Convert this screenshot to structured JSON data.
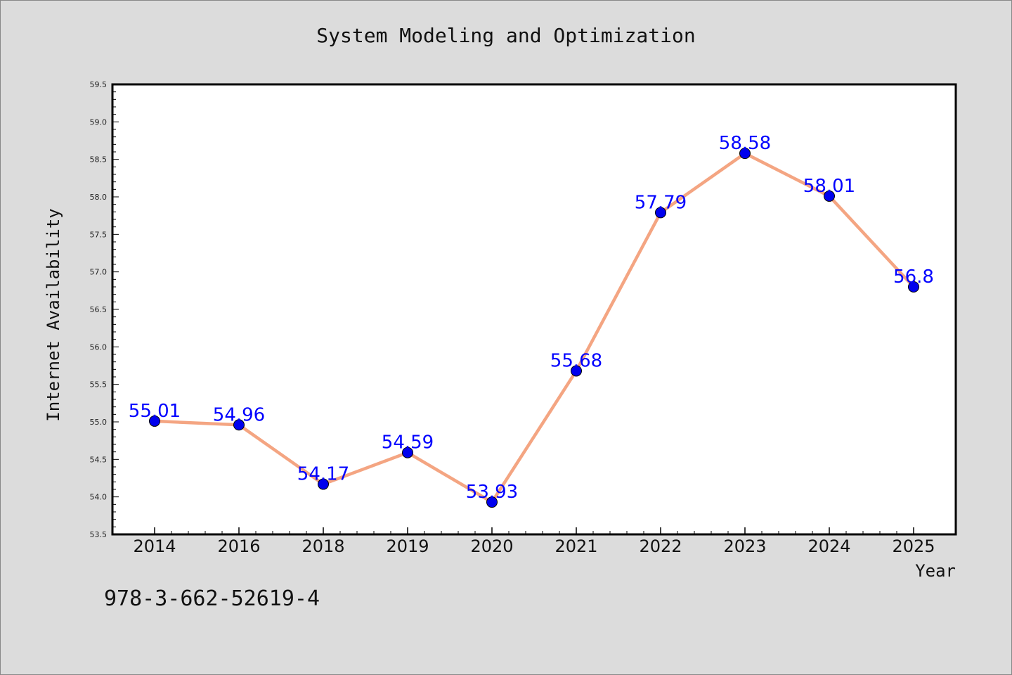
{
  "chart_data": {
    "type": "line",
    "title": "System Modeling and Optimization",
    "xlabel": "Year",
    "ylabel": "Internet Availability",
    "categories": [
      "2014",
      "2016",
      "2018",
      "2019",
      "2020",
      "2021",
      "2022",
      "2023",
      "2024",
      "2025"
    ],
    "values": [
      55.01,
      54.96,
      54.17,
      54.59,
      53.93,
      55.68,
      57.79,
      58.58,
      58.01,
      56.8
    ],
    "data_labels": [
      "55.01",
      "54.96",
      "54.17",
      "54.59",
      "53.93",
      "55.68",
      "57.79",
      "58.58",
      "58.01",
      "56.8"
    ],
    "ylim": [
      53.5,
      59.5
    ],
    "yticks": [
      "53.5",
      "54.0",
      "54.5",
      "55.0",
      "55.5",
      "56.0",
      "56.5",
      "57.0",
      "57.5",
      "58.0",
      "58.5",
      "59.0",
      "59.5"
    ],
    "grid": false,
    "colors": {
      "line": "#f4a582",
      "marker": "#0000ee",
      "label": "#0000ff",
      "plot_background": "#ffffff",
      "page_background": "#dcdcdc"
    }
  },
  "footer": {
    "code": "978-3-662-52619-4"
  }
}
